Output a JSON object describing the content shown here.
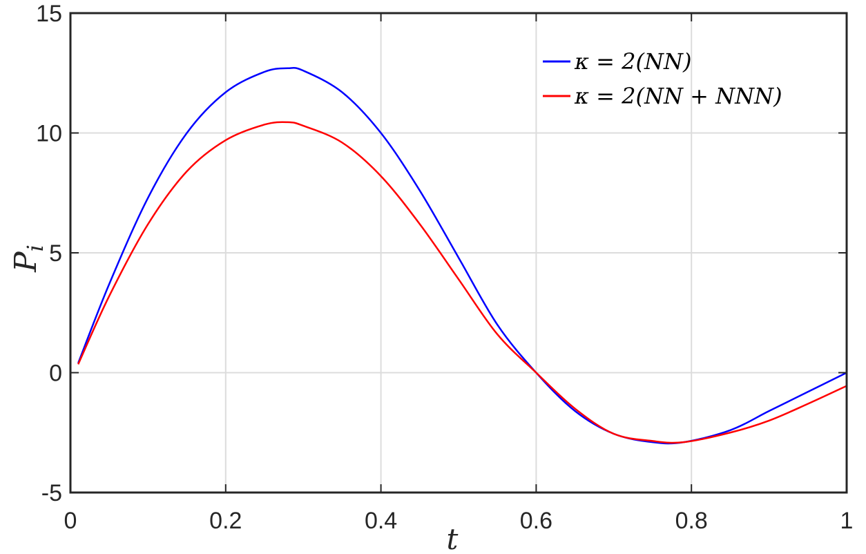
{
  "chart_data": {
    "type": "line",
    "xlabel": "t",
    "ylabel_main": "P",
    "ylabel_sub": "i",
    "xlim": [
      0,
      1
    ],
    "ylim": [
      -5,
      15
    ],
    "xticks": [
      0,
      0.2,
      0.4,
      0.6,
      0.8,
      1
    ],
    "xtick_labels": [
      "0",
      "0.2",
      "0.4",
      "0.6",
      "0.8",
      "1"
    ],
    "yticks": [
      -5,
      0,
      5,
      10,
      15
    ],
    "ytick_labels": [
      "-5",
      "0",
      "5",
      "10",
      "15"
    ],
    "grid": true,
    "legend_position": "top-right",
    "series": [
      {
        "name": "κ = 2(NN)",
        "color": "#0000ff",
        "x": [
          0.01,
          0.05,
          0.1,
          0.15,
          0.2,
          0.25,
          0.28,
          0.3,
          0.35,
          0.4,
          0.45,
          0.5,
          0.55,
          0.6,
          0.65,
          0.7,
          0.75,
          0.79,
          0.85,
          0.9,
          0.95,
          1.0
        ],
        "values": [
          0.4,
          3.7,
          7.3,
          10.0,
          11.7,
          12.55,
          12.7,
          12.6,
          11.7,
          10.0,
          7.6,
          4.8,
          2.0,
          0.0,
          -1.6,
          -2.55,
          -2.9,
          -2.9,
          -2.4,
          -1.6,
          -0.8,
          0.0
        ]
      },
      {
        "name": "κ = 2(NN + NNN)",
        "color": "#ff0000",
        "x": [
          0.01,
          0.05,
          0.1,
          0.15,
          0.2,
          0.25,
          0.28,
          0.3,
          0.35,
          0.4,
          0.45,
          0.5,
          0.55,
          0.6,
          0.65,
          0.7,
          0.75,
          0.79,
          0.85,
          0.9,
          0.95,
          1.0
        ],
        "values": [
          0.35,
          3.2,
          6.2,
          8.4,
          9.7,
          10.35,
          10.45,
          10.3,
          9.6,
          8.2,
          6.2,
          3.9,
          1.6,
          0.0,
          -1.5,
          -2.55,
          -2.85,
          -2.9,
          -2.5,
          -2.0,
          -1.3,
          -0.55
        ]
      }
    ],
    "legend": [
      {
        "prefix": "κ = 2(",
        "core": "NN",
        "plus": "",
        "extra": "",
        "suffix": ")"
      },
      {
        "prefix": "κ = 2(",
        "core": "NN",
        "plus": " + ",
        "extra": "NNN",
        "suffix": ")"
      }
    ]
  }
}
